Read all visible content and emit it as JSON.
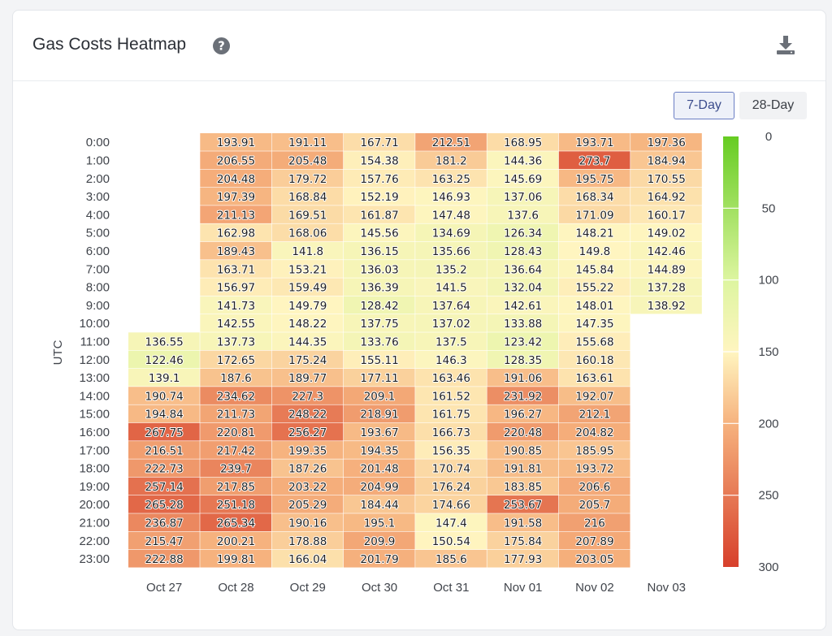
{
  "header": {
    "title": "Gas Costs Heatmap",
    "help_icon": "question-circle-icon",
    "download_icon": "download-icon"
  },
  "range_buttons": {
    "seven_day": "7-Day",
    "twenty_eight_day": "28-Day",
    "active": "7-Day"
  },
  "chart_data": {
    "type": "heatmap",
    "title": "",
    "ylabel": "UTC",
    "xlabel": "",
    "x": [
      "Oct 27",
      "Oct 28",
      "Oct 29",
      "Oct 30",
      "Oct 31",
      "Nov 01",
      "Nov 02",
      "Nov 03"
    ],
    "y": [
      "0:00",
      "1:00",
      "2:00",
      "3:00",
      "4:00",
      "5:00",
      "6:00",
      "7:00",
      "8:00",
      "9:00",
      "10:00",
      "11:00",
      "12:00",
      "13:00",
      "14:00",
      "15:00",
      "16:00",
      "17:00",
      "18:00",
      "19:00",
      "20:00",
      "21:00",
      "22:00",
      "23:00"
    ],
    "values": [
      [
        null,
        193.91,
        191.11,
        167.71,
        212.51,
        168.95,
        193.71,
        197.36
      ],
      [
        null,
        206.55,
        205.48,
        154.38,
        181.2,
        144.36,
        273.7,
        184.94
      ],
      [
        null,
        204.48,
        179.72,
        157.76,
        163.25,
        145.69,
        195.75,
        170.55
      ],
      [
        null,
        197.39,
        168.84,
        152.19,
        146.93,
        137.06,
        168.34,
        164.92
      ],
      [
        null,
        211.13,
        169.51,
        161.87,
        147.48,
        137.6,
        171.09,
        160.17
      ],
      [
        null,
        162.98,
        168.06,
        145.56,
        134.69,
        126.34,
        148.21,
        149.02
      ],
      [
        null,
        189.43,
        141.8,
        136.15,
        135.66,
        128.43,
        149.8,
        142.46
      ],
      [
        null,
        163.71,
        153.21,
        136.03,
        135.2,
        136.64,
        145.84,
        144.89
      ],
      [
        null,
        156.97,
        159.49,
        136.39,
        141.5,
        132.04,
        155.22,
        137.28
      ],
      [
        null,
        141.73,
        149.79,
        128.42,
        137.64,
        142.61,
        148.01,
        138.92
      ],
      [
        null,
        142.55,
        148.22,
        137.75,
        137.02,
        133.88,
        147.35,
        null
      ],
      [
        136.55,
        137.73,
        144.35,
        133.76,
        137.5,
        123.42,
        155.68,
        null
      ],
      [
        122.46,
        172.65,
        175.24,
        155.11,
        146.3,
        128.35,
        160.18,
        null
      ],
      [
        139.1,
        187.6,
        189.77,
        177.11,
        163.46,
        191.06,
        163.61,
        null
      ],
      [
        190.74,
        234.62,
        227.3,
        209.1,
        161.52,
        231.92,
        192.07,
        null
      ],
      [
        194.84,
        211.73,
        248.22,
        218.91,
        161.75,
        196.27,
        212.1,
        null
      ],
      [
        267.75,
        220.81,
        256.27,
        193.67,
        166.73,
        220.48,
        204.82,
        null
      ],
      [
        216.51,
        217.42,
        199.35,
        194.35,
        156.35,
        190.85,
        185.95,
        null
      ],
      [
        222.73,
        239.7,
        187.26,
        201.48,
        170.74,
        191.81,
        193.72,
        null
      ],
      [
        257.14,
        217.85,
        203.22,
        204.99,
        176.24,
        183.85,
        206.6,
        null
      ],
      [
        265.28,
        251.18,
        205.29,
        184.44,
        174.66,
        253.67,
        205.7,
        null
      ],
      [
        236.87,
        265.34,
        190.16,
        195.1,
        147.4,
        191.58,
        216,
        null
      ],
      [
        215.47,
        200.21,
        178.88,
        209.9,
        150.54,
        175.84,
        207.89,
        null
      ],
      [
        222.88,
        199.81,
        166.04,
        201.79,
        185.6,
        177.93,
        203.05,
        null
      ]
    ],
    "scale": {
      "min": 0,
      "max": 300,
      "ticks": [
        0,
        50,
        100,
        150,
        200,
        250,
        300
      ],
      "colors": [
        "#66cc22",
        "#ddf5a0",
        "#fff5c0",
        "#f6b27e",
        "#d7402b"
      ],
      "stops": [
        0,
        100,
        150,
        200,
        300
      ]
    },
    "legend": "right"
  }
}
